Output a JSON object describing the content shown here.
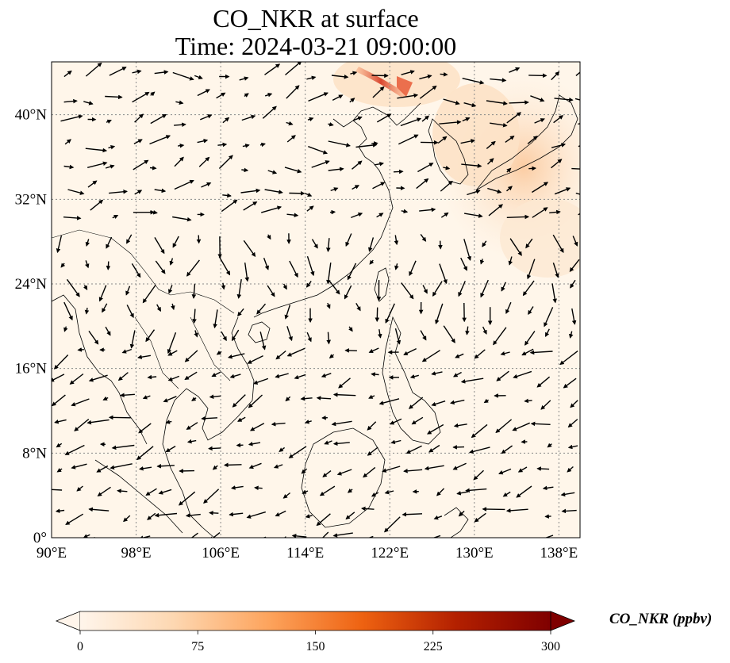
{
  "title": {
    "line1": "CO_NKR at surface",
    "line2": "Time: 2024-03-21 09:00:00"
  },
  "map": {
    "extent": {
      "lon_min": 90,
      "lon_max": 140,
      "lat_min": 0,
      "lat_max": 45
    },
    "gridlines": true,
    "lon_ticks": [
      {
        "value": 90,
        "label": "90°E"
      },
      {
        "value": 98,
        "label": "98°E"
      },
      {
        "value": 106,
        "label": "106°E"
      },
      {
        "value": 114,
        "label": "114°E"
      },
      {
        "value": 122,
        "label": "122°E"
      },
      {
        "value": 130,
        "label": "130°E"
      },
      {
        "value": 138,
        "label": "138°E"
      }
    ],
    "lat_ticks": [
      {
        "value": 0,
        "label": "0°"
      },
      {
        "value": 8,
        "label": "8°N"
      },
      {
        "value": 16,
        "label": "16°N"
      },
      {
        "value": 24,
        "label": "24°N"
      },
      {
        "value": 32,
        "label": "32°N"
      },
      {
        "value": 40,
        "label": "40°N"
      }
    ],
    "background_color": "#fff6ea",
    "coastline_color": "#000000"
  },
  "colorbar": {
    "label": "CO_NKR (ppbv)",
    "min": 0,
    "max": 300,
    "ticks": [
      {
        "value": 0,
        "label": "0"
      },
      {
        "value": 75,
        "label": "75"
      },
      {
        "value": 150,
        "label": "150"
      },
      {
        "value": 225,
        "label": "225"
      },
      {
        "value": 300,
        "label": "300"
      }
    ],
    "extend": "both",
    "colormap": [
      "#fff5eb",
      "#fdd7b1",
      "#fda45d",
      "#ee6211",
      "#b32000",
      "#7f0000"
    ]
  }
}
